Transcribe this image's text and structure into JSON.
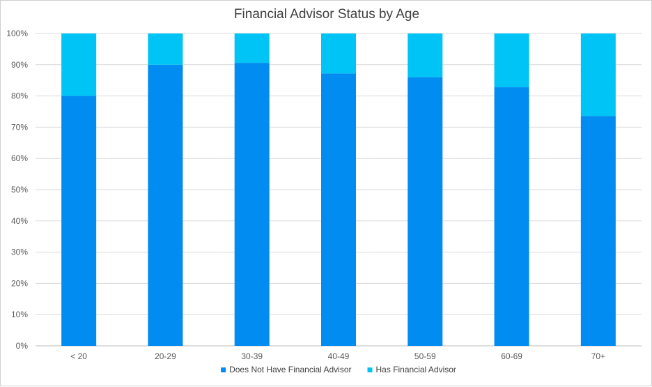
{
  "chart_data": {
    "type": "bar",
    "stacked": true,
    "title": "Financial Advisor Status by Age",
    "categories": [
      "< 20",
      "20-29",
      "30-39",
      "40-49",
      "50-59",
      "60-69",
      "70+"
    ],
    "series": [
      {
        "name": "Does Not Have Financial Advisor",
        "color": "#008cf0",
        "values": [
          80,
          90,
          90.6,
          87.2,
          86,
          82.8,
          73.6
        ]
      },
      {
        "name": "Has Financial Advisor",
        "color": "#00c4f5",
        "values": [
          20,
          10,
          9.4,
          12.8,
          14,
          17.2,
          26.4
        ]
      }
    ],
    "ylim": [
      0,
      100
    ],
    "y_ticks": [
      "0%",
      "10%",
      "20%",
      "30%",
      "40%",
      "50%",
      "60%",
      "70%",
      "80%",
      "90%",
      "100%"
    ],
    "grid": true,
    "legend_position": "bottom"
  }
}
